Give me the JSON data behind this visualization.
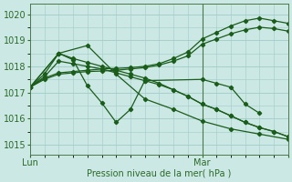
{
  "title": "",
  "xlabel": "Pression niveau de la mer( hPa )",
  "ylim": [
    1014.6,
    1020.4
  ],
  "xlim": [
    0,
    54
  ],
  "yticks": [
    1015,
    1016,
    1017,
    1018,
    1019,
    1020
  ],
  "xticks_pos": [
    0,
    36,
    54
  ],
  "xtick_labels": [
    "Lun",
    "Mar",
    ""
  ],
  "vline_x": 36,
  "bg_color": "#cce8e4",
  "grid_color": "#a0ccc8",
  "line_color": "#1a5c1a",
  "series_x": [
    [
      0,
      3,
      6,
      9,
      12,
      15,
      18,
      21,
      24,
      27,
      30,
      33,
      36,
      39,
      42,
      45,
      48,
      51,
      54
    ],
    [
      0,
      3,
      6,
      9,
      12,
      15,
      18,
      21,
      24,
      27,
      30,
      33,
      36,
      39,
      42,
      45,
      48,
      51,
      54
    ],
    [
      0,
      3,
      6,
      9,
      12,
      15,
      18,
      21,
      24,
      27,
      30,
      33,
      36,
      39,
      42,
      45,
      48,
      51,
      54
    ],
    [
      0,
      3,
      6,
      9,
      12,
      15,
      18,
      21,
      24,
      27,
      30,
      33,
      36,
      39,
      42,
      45,
      48,
      51,
      54
    ],
    [
      0,
      6,
      12,
      18,
      24,
      30,
      36,
      42,
      48,
      54
    ]
  ],
  "series_y": [
    [
      1017.2,
      1017.55,
      1017.75,
      1017.8,
      1017.85,
      1017.9,
      1017.92,
      1017.95,
      1018.0,
      1018.1,
      1018.3,
      1018.55,
      1019.05,
      1019.3,
      1019.55,
      1019.75,
      1019.85,
      1019.75,
      1019.65
    ],
    [
      1017.2,
      1017.5,
      1017.7,
      1017.75,
      1017.8,
      1017.82,
      1017.85,
      1017.9,
      1017.95,
      1018.05,
      1018.2,
      1018.4,
      1018.85,
      1019.05,
      1019.25,
      1019.4,
      1019.5,
      1019.45,
      1019.35
    ],
    [
      1017.2,
      1017.7,
      1018.5,
      1018.3,
      1018.15,
      1018.0,
      1017.85,
      1017.7,
      1017.55,
      1017.35,
      1017.1,
      1016.85,
      1016.55,
      1016.35,
      1016.1,
      1015.85,
      1015.65,
      1015.5,
      1015.3
    ],
    [
      1017.2,
      1017.6,
      1018.2,
      1018.1,
      1018.0,
      1017.9,
      1017.75,
      1017.6,
      1017.45,
      1017.3,
      1017.1,
      1016.85,
      1016.55,
      1016.35,
      1016.1,
      1015.85,
      1015.65,
      1015.5,
      1015.3
    ],
    [
      1017.2,
      1018.5,
      1018.8,
      1017.7,
      1016.75,
      1016.35,
      1015.9,
      1015.6,
      1015.4,
      1015.2
    ]
  ],
  "series_sharp_x": [
    0,
    6,
    9,
    12,
    15,
    18,
    21,
    24,
    36,
    39,
    42,
    45,
    48
  ],
  "series_sharp_y": [
    1017.2,
    1018.5,
    1018.25,
    1017.25,
    1016.6,
    1015.85,
    1016.35,
    1017.45,
    1017.5,
    1017.35,
    1017.2,
    1016.55,
    1016.2
  ]
}
